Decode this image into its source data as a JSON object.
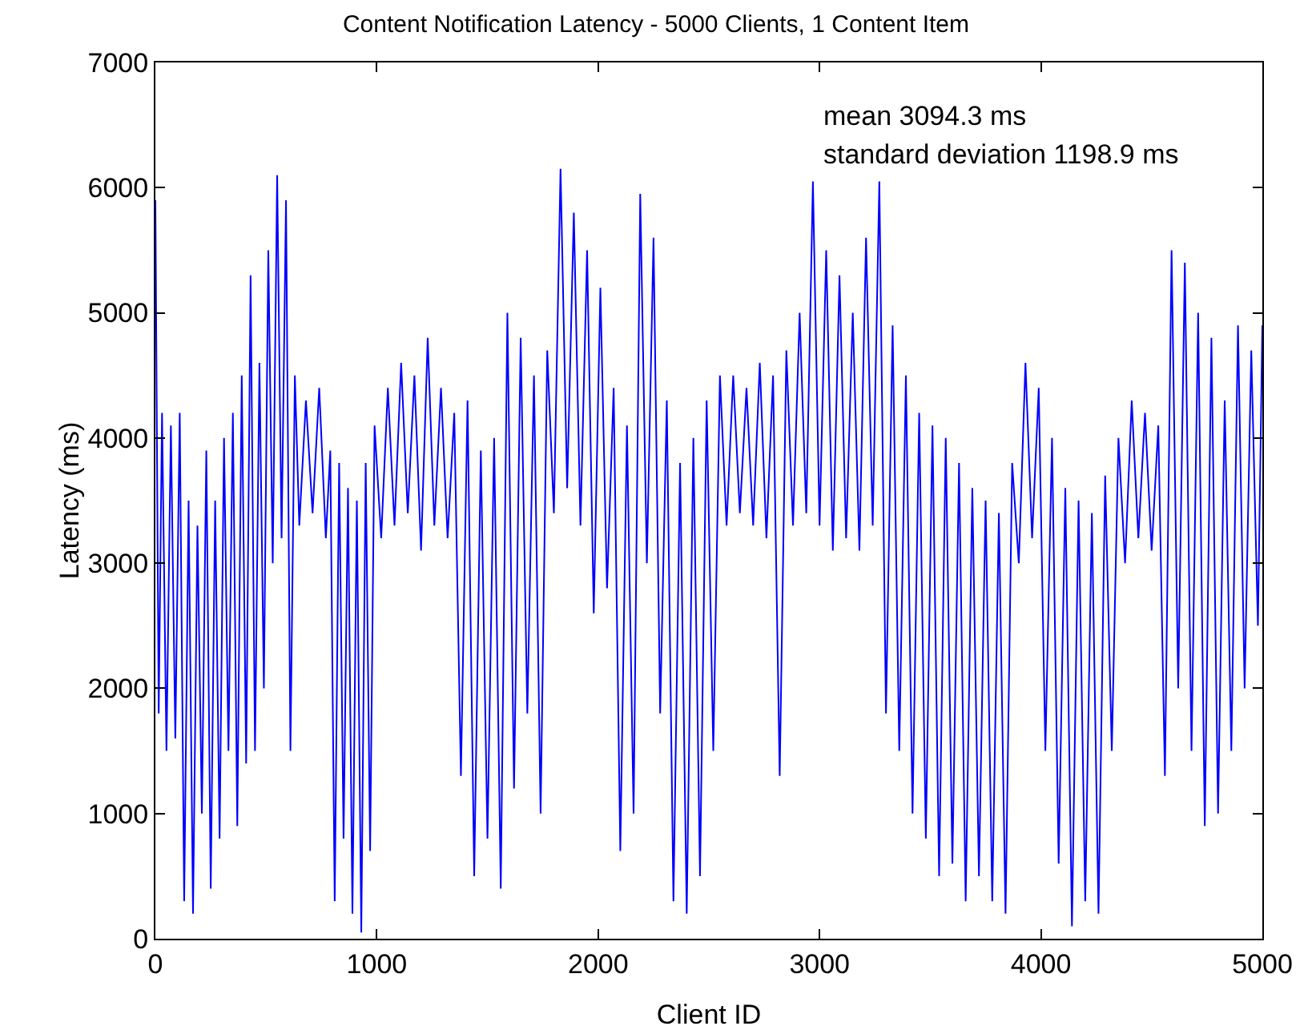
{
  "chart_data": {
    "type": "line",
    "title": "Content Notification Latency - 5000 Clients, 1 Content Item",
    "xlabel": "Client ID",
    "ylabel": "Latency (ms)",
    "annotations": [
      "mean 3094.3 ms",
      "standard deviation 1198.9 ms"
    ],
    "xlim": [
      0,
      5000
    ],
    "xticks": [
      0,
      1000,
      2000,
      3000,
      4000,
      5000
    ],
    "ylim": [
      0,
      7000
    ],
    "yticks": [
      0,
      1000,
      2000,
      3000,
      4000,
      5000,
      6000,
      7000
    ],
    "marker": "none",
    "line_style": "solid",
    "series": [
      {
        "color": "#0000ff",
        "x": [
          0,
          15,
          30,
          50,
          70,
          90,
          110,
          130,
          150,
          170,
          190,
          210,
          230,
          250,
          270,
          290,
          310,
          330,
          350,
          370,
          390,
          410,
          430,
          450,
          470,
          490,
          510,
          530,
          550,
          570,
          590,
          610,
          630,
          650,
          680,
          710,
          740,
          770,
          790,
          810,
          830,
          850,
          870,
          890,
          910,
          930,
          950,
          970,
          990,
          1020,
          1050,
          1080,
          1110,
          1140,
          1170,
          1200,
          1230,
          1260,
          1290,
          1320,
          1350,
          1380,
          1410,
          1440,
          1470,
          1500,
          1530,
          1560,
          1590,
          1620,
          1650,
          1680,
          1710,
          1740,
          1770,
          1800,
          1830,
          1860,
          1890,
          1920,
          1950,
          1980,
          2010,
          2040,
          2070,
          2100,
          2130,
          2160,
          2190,
          2220,
          2250,
          2280,
          2310,
          2340,
          2370,
          2400,
          2430,
          2460,
          2490,
          2520,
          2550,
          2580,
          2610,
          2640,
          2670,
          2700,
          2730,
          2760,
          2790,
          2820,
          2850,
          2880,
          2910,
          2940,
          2970,
          3000,
          3030,
          3060,
          3090,
          3120,
          3150,
          3180,
          3210,
          3240,
          3270,
          3300,
          3330,
          3360,
          3390,
          3420,
          3450,
          3480,
          3510,
          3540,
          3570,
          3600,
          3630,
          3660,
          3690,
          3720,
          3750,
          3780,
          3810,
          3840,
          3870,
          3900,
          3930,
          3960,
          3990,
          4020,
          4050,
          4080,
          4110,
          4140,
          4170,
          4200,
          4230,
          4260,
          4290,
          4320,
          4350,
          4380,
          4410,
          4440,
          4470,
          4500,
          4530,
          4560,
          4590,
          4620,
          4650,
          4680,
          4710,
          4740,
          4770,
          4800,
          4830,
          4860,
          4890,
          4920,
          4950,
          4980,
          5000
        ],
        "values": [
          5900,
          1800,
          4200,
          1500,
          4100,
          1600,
          4200,
          300,
          3500,
          200,
          3300,
          1000,
          3900,
          400,
          3500,
          800,
          4000,
          1500,
          4200,
          900,
          4500,
          1400,
          5300,
          1500,
          4600,
          2000,
          5500,
          3000,
          6100,
          3200,
          5900,
          1500,
          4500,
          3300,
          4300,
          3400,
          4400,
          3200,
          3900,
          300,
          3800,
          800,
          3600,
          200,
          3500,
          50,
          3800,
          700,
          4100,
          3200,
          4400,
          3300,
          4600,
          3400,
          4500,
          3100,
          4800,
          3300,
          4400,
          3200,
          4200,
          1300,
          4300,
          500,
          3900,
          800,
          4000,
          400,
          5000,
          1200,
          4800,
          1800,
          4500,
          1000,
          4700,
          3400,
          6150,
          3600,
          5800,
          3300,
          5500,
          2600,
          5200,
          2800,
          4400,
          700,
          4100,
          1000,
          5950,
          3000,
          5600,
          1800,
          4300,
          300,
          3800,
          200,
          4000,
          500,
          4300,
          1500,
          4500,
          3300,
          4500,
          3400,
          4400,
          3300,
          4600,
          3200,
          4500,
          1300,
          4700,
          3300,
          5000,
          3400,
          6050,
          3300,
          5500,
          3100,
          5300,
          3200,
          5000,
          3100,
          5600,
          3300,
          6050,
          1800,
          4900,
          1500,
          4500,
          1000,
          4200,
          800,
          4100,
          500,
          4000,
          600,
          3800,
          300,
          3600,
          500,
          3500,
          300,
          3400,
          200,
          3800,
          3000,
          4600,
          3200,
          4400,
          1500,
          4000,
          600,
          3600,
          100,
          3500,
          300,
          3400,
          200,
          3700,
          1500,
          4000,
          3000,
          4300,
          3200,
          4200,
          3100,
          4100,
          1300,
          5500,
          2000,
          5400,
          1500,
          5000,
          900,
          4800,
          1000,
          4300,
          1500,
          4900,
          2000,
          4700,
          2500,
          4900
        ]
      }
    ]
  }
}
